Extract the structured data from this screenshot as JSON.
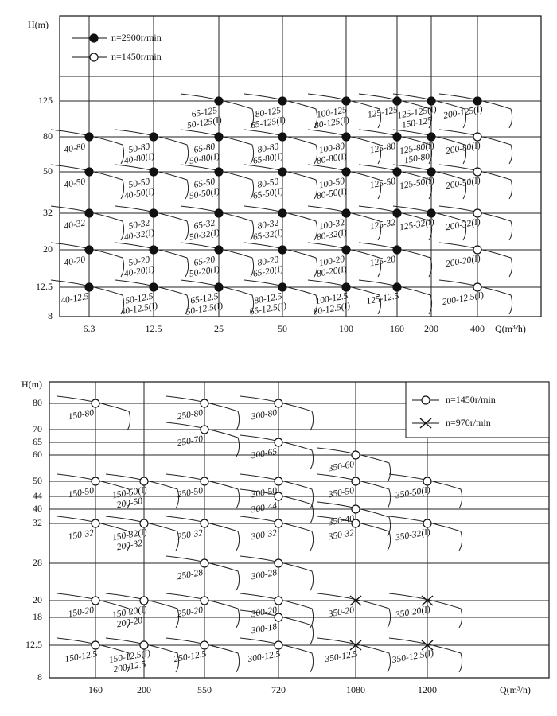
{
  "panels": [
    {
      "y_axis_label": "H(m)",
      "x_axis_label": "Q(m³/h)",
      "yticks": [
        "125",
        "80",
        "50",
        "32",
        "20",
        "12.5",
        "8"
      ],
      "xticks": [
        "6.3",
        "12.5",
        "25",
        "50",
        "100",
        "160",
        "200",
        "400"
      ],
      "series": [
        {
          "name": "n=2900r/min",
          "marker": "filled",
          "points": [
            {
              "q": "6.3",
              "h": "80",
              "labels": [
                "40-80"
              ]
            },
            {
              "q": "6.3",
              "h": "50",
              "labels": [
                "40-50"
              ]
            },
            {
              "q": "6.3",
              "h": "32",
              "labels": [
                "40-32"
              ]
            },
            {
              "q": "6.3",
              "h": "20",
              "labels": [
                "40-20"
              ]
            },
            {
              "q": "6.3",
              "h": "12.5",
              "labels": [
                "40-12.5"
              ]
            },
            {
              "q": "12.5",
              "h": "80",
              "labels": [
                "50-80",
                "40-80(I)"
              ]
            },
            {
              "q": "12.5",
              "h": "50",
              "labels": [
                "50-50",
                "40-50(I)"
              ]
            },
            {
              "q": "12.5",
              "h": "32",
              "labels": [
                "50-32",
                "40-32(I)"
              ]
            },
            {
              "q": "12.5",
              "h": "20",
              "labels": [
                "50-20",
                "40-20(I)"
              ]
            },
            {
              "q": "12.5",
              "h": "12.5",
              "labels": [
                "50-12.5",
                "40-12.5(I)"
              ]
            },
            {
              "q": "25",
              "h": "125",
              "labels": [
                "65-125",
                "50-125(I)"
              ]
            },
            {
              "q": "25",
              "h": "80",
              "labels": [
                "65-80",
                "50-80(I)"
              ]
            },
            {
              "q": "25",
              "h": "50",
              "labels": [
                "65-50",
                "50-50(I)"
              ]
            },
            {
              "q": "25",
              "h": "32",
              "labels": [
                "65-32",
                "50-32(I)"
              ]
            },
            {
              "q": "25",
              "h": "20",
              "labels": [
                "65-20",
                "50-20(I)"
              ]
            },
            {
              "q": "25",
              "h": "12.5",
              "labels": [
                "65-12.5",
                "50-12.5(I)"
              ]
            },
            {
              "q": "50",
              "h": "125",
              "labels": [
                "80-125",
                "65-125(I)"
              ]
            },
            {
              "q": "50",
              "h": "80",
              "labels": [
                "80-80",
                "65-80(I)"
              ]
            },
            {
              "q": "50",
              "h": "50",
              "labels": [
                "80-50",
                "65-50(I)"
              ]
            },
            {
              "q": "50",
              "h": "32",
              "labels": [
                "80-32",
                "65-32(I)"
              ]
            },
            {
              "q": "50",
              "h": "20",
              "labels": [
                "80-20",
                "65-20(I)"
              ]
            },
            {
              "q": "50",
              "h": "12.5",
              "labels": [
                "80-12.5",
                "65-12.5(I)"
              ]
            },
            {
              "q": "100",
              "h": "125",
              "labels": [
                "100-125",
                "80-125(I)"
              ]
            },
            {
              "q": "100",
              "h": "80",
              "labels": [
                "100-80",
                "80-80(I)"
              ]
            },
            {
              "q": "100",
              "h": "50",
              "labels": [
                "100-50",
                "80-50(I)"
              ]
            },
            {
              "q": "100",
              "h": "32",
              "labels": [
                "100-32",
                "80-32(I)"
              ]
            },
            {
              "q": "100",
              "h": "20",
              "labels": [
                "100-20",
                "80-20(I)"
              ]
            },
            {
              "q": "100",
              "h": "12.5",
              "labels": [
                "100-12.5",
                "80-12.5(I)"
              ]
            },
            {
              "q": "160",
              "h": "125",
              "labels": [
                "125-125"
              ]
            },
            {
              "q": "160",
              "h": "80",
              "labels": [
                "125-80"
              ]
            },
            {
              "q": "160",
              "h": "50",
              "labels": [
                "125-50"
              ]
            },
            {
              "q": "160",
              "h": "32",
              "labels": [
                "125-32"
              ]
            },
            {
              "q": "160",
              "h": "20",
              "labels": [
                "125-20"
              ]
            },
            {
              "q": "160",
              "h": "12.5",
              "labels": [
                "125-12.5"
              ]
            },
            {
              "q": "200",
              "h": "125",
              "labels": [
                "125-125(I)",
                "150-125"
              ]
            },
            {
              "q": "200",
              "h": "80",
              "labels": [
                "125-80(I)",
                "150-80"
              ]
            },
            {
              "q": "200",
              "h": "50",
              "labels": [
                "125-50(I)"
              ]
            },
            {
              "q": "200",
              "h": "32",
              "labels": [
                "125-32(I)"
              ]
            },
            {
              "q": "400",
              "h": "125",
              "labels": [
                "200-125(I)"
              ]
            }
          ]
        },
        {
          "name": "n=1450r/min",
          "marker": "open",
          "points": [
            {
              "q": "400",
              "h": "80",
              "labels": [
                "200-80(I)"
              ]
            },
            {
              "q": "400",
              "h": "50",
              "labels": [
                "200-50(I)"
              ]
            },
            {
              "q": "400",
              "h": "32",
              "labels": [
                "200-32(I)"
              ]
            },
            {
              "q": "400",
              "h": "20",
              "labels": [
                "200-20(I)"
              ]
            },
            {
              "q": "400",
              "h": "12.5",
              "labels": [
                "200-12.5(I)"
              ]
            }
          ]
        }
      ]
    },
    {
      "y_axis_label": "H(m)",
      "x_axis_label": "Q(m³/h)",
      "yticks": [
        "80",
        "70",
        "65",
        "60",
        "50",
        "44",
        "40",
        "32",
        "28",
        "20",
        "18",
        "12.5",
        "8"
      ],
      "xticks": [
        "160",
        "200",
        "550",
        "720",
        "1080",
        "1200"
      ],
      "series": [
        {
          "name": "n=1450r/min",
          "marker": "open",
          "points": [
            {
              "q": "160",
              "h": "80",
              "labels": [
                "150-80"
              ]
            },
            {
              "q": "160",
              "h": "50",
              "labels": [
                "150-50"
              ]
            },
            {
              "q": "160",
              "h": "32",
              "labels": [
                "150-32"
              ]
            },
            {
              "q": "160",
              "h": "20",
              "labels": [
                "150-20"
              ]
            },
            {
              "q": "160",
              "h": "12.5",
              "labels": [
                "150-12.5"
              ]
            },
            {
              "q": "200",
              "h": "50",
              "labels": [
                "150-50(I)",
                "200-50"
              ]
            },
            {
              "q": "200",
              "h": "32",
              "labels": [
                "150-32(I)",
                "200-32"
              ]
            },
            {
              "q": "200",
              "h": "20",
              "labels": [
                "150-20(I)",
                "200-20"
              ]
            },
            {
              "q": "200",
              "h": "12.5",
              "labels": [
                "150-12.5(I)",
                "200-12.5"
              ]
            },
            {
              "q": "550",
              "h": "80",
              "labels": [
                "250-80"
              ]
            },
            {
              "q": "550",
              "h": "70",
              "labels": [
                "250-70"
              ]
            },
            {
              "q": "550",
              "h": "50",
              "labels": [
                "250-50"
              ]
            },
            {
              "q": "550",
              "h": "32",
              "labels": [
                "250-32"
              ]
            },
            {
              "q": "550",
              "h": "28",
              "labels": [
                "250-28"
              ]
            },
            {
              "q": "550",
              "h": "20",
              "labels": [
                "250-20"
              ]
            },
            {
              "q": "550",
              "h": "12.5",
              "labels": [
                "250-12.5"
              ]
            },
            {
              "q": "720",
              "h": "80",
              "labels": [
                "300-80"
              ]
            },
            {
              "q": "720",
              "h": "65",
              "labels": [
                "300-65"
              ]
            },
            {
              "q": "720",
              "h": "50",
              "labels": [
                "300-50"
              ]
            },
            {
              "q": "720",
              "h": "44",
              "labels": [
                "300-44"
              ]
            },
            {
              "q": "720",
              "h": "32",
              "labels": [
                "300-32"
              ]
            },
            {
              "q": "720",
              "h": "28",
              "labels": [
                "300-28"
              ]
            },
            {
              "q": "720",
              "h": "20",
              "labels": [
                "300-20"
              ]
            },
            {
              "q": "720",
              "h": "18",
              "labels": [
                "300-18"
              ]
            },
            {
              "q": "720",
              "h": "12.5",
              "labels": [
                "300-12.5"
              ]
            },
            {
              "q": "1080",
              "h": "60",
              "labels": [
                "350-60"
              ]
            },
            {
              "q": "1080",
              "h": "50",
              "labels": [
                "350-50"
              ]
            },
            {
              "q": "1080",
              "h": "40",
              "labels": [
                "350-40"
              ]
            },
            {
              "q": "1080",
              "h": "32",
              "labels": [
                "350-32"
              ]
            },
            {
              "q": "1200",
              "h": "50",
              "labels": [
                "350-50(I)"
              ]
            },
            {
              "q": "1200",
              "h": "32",
              "labels": [
                "350-32(I)"
              ]
            }
          ]
        },
        {
          "name": "n=970r/min",
          "marker": "cross",
          "points": [
            {
              "q": "1080",
              "h": "20",
              "labels": [
                "350-20"
              ]
            },
            {
              "q": "1080",
              "h": "12.5",
              "labels": [
                "350-12.5"
              ]
            },
            {
              "q": "1200",
              "h": "20",
              "labels": [
                "350-20(I)"
              ]
            },
            {
              "q": "1200",
              "h": "12.5",
              "labels": [
                "350-12.5(I)"
              ]
            }
          ]
        }
      ]
    }
  ]
}
